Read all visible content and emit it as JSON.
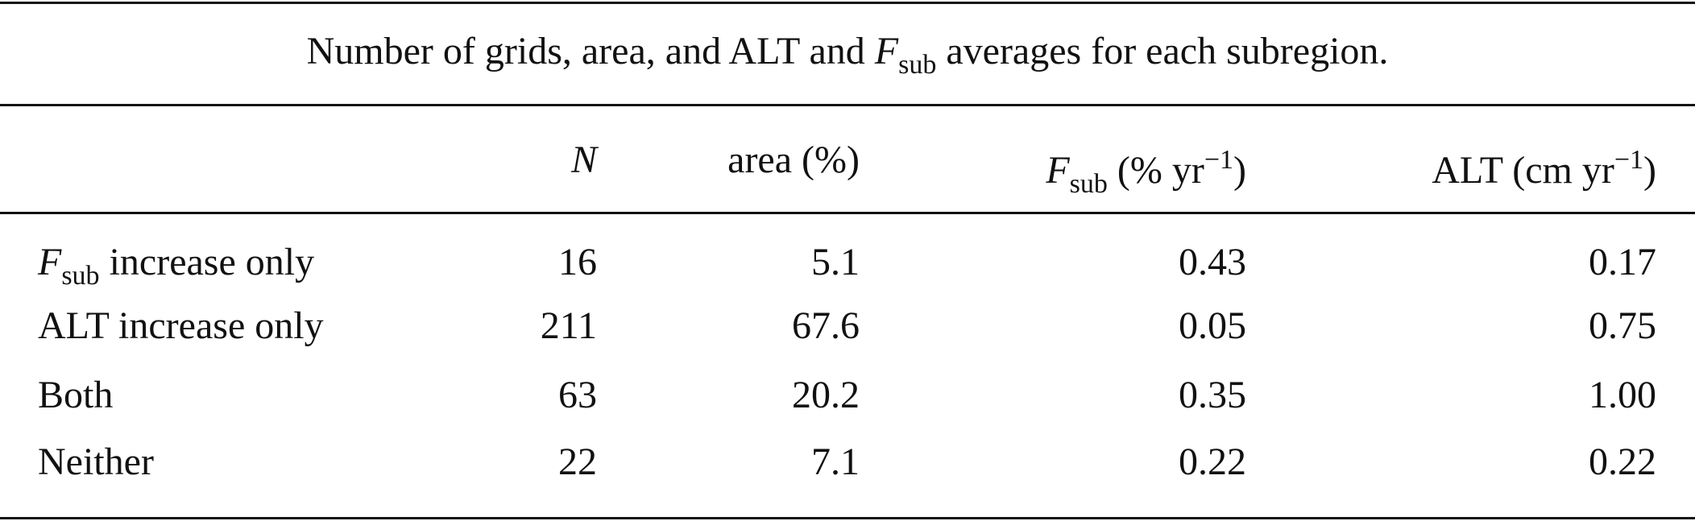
{
  "caption": [
    "Number of grids, area, and ALT and ",
    "F",
    "sub",
    " averages for each subregion."
  ],
  "table": {
    "columns": [
      [
        "N"
      ],
      [
        "area (%)"
      ],
      [
        "F",
        "sub",
        " (% yr",
        "−1",
        ")"
      ],
      [
        "ALT (cm yr",
        "−1",
        ")"
      ]
    ],
    "rows": [
      {
        "label": [
          "F",
          "sub",
          " increase only"
        ],
        "cells": [
          "16",
          "5.1",
          "0.43",
          "0.17"
        ]
      },
      {
        "label": [
          "ALT increase only"
        ],
        "cells": [
          "211",
          "67.6",
          "0.05",
          "0.75"
        ]
      },
      {
        "label": [
          "Both"
        ],
        "cells": [
          "63",
          "20.2",
          "0.35",
          "1.00"
        ]
      },
      {
        "label": [
          "Neither"
        ],
        "cells": [
          "22",
          "7.1",
          "0.22",
          "0.22"
        ]
      }
    ]
  }
}
